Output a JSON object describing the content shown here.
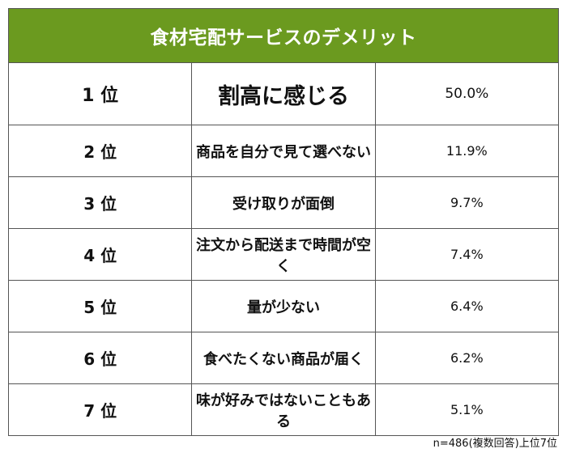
{
  "title": "食材宅配サービスのデメリット",
  "rows": [
    {
      "rank": "1 位",
      "label": "割高に感じる",
      "percent": "50.0%"
    },
    {
      "rank": "2 位",
      "label": "商品を自分で見て選べない",
      "percent": "11.9%"
    },
    {
      "rank": "3 位",
      "label": "受け取りが面倒",
      "percent": "9.7%"
    },
    {
      "rank": "4 位",
      "label": "注文から配送まで時間が空く",
      "percent": "7.4%"
    },
    {
      "rank": "5 位",
      "label": "量が少ない",
      "percent": "6.4%"
    },
    {
      "rank": "6 位",
      "label": "食べたくない商品が届く",
      "percent": "6.2%"
    },
    {
      "rank": "7 位",
      "label": "味が好みではないこともある",
      "percent": "5.1%"
    }
  ],
  "footnote": "n=486(複数回答)上位7位",
  "colors": {
    "header_bg": "#6b9a1f",
    "header_text": "#ffffff",
    "border": "#555555"
  }
}
